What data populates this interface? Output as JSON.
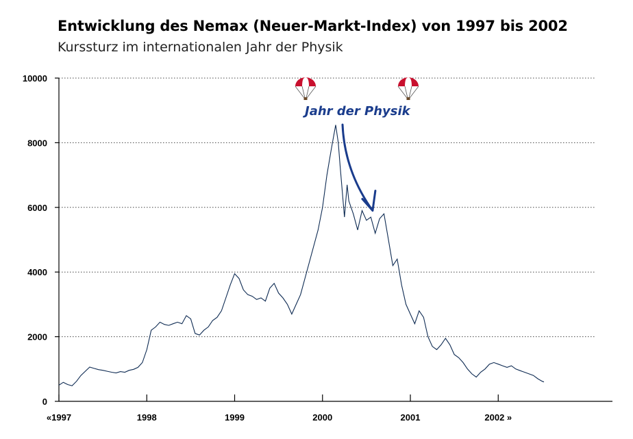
{
  "chart_data": {
    "type": "line",
    "title": "Entwicklung des Nemax (Neuer-Markt-Index) von 1997 bis 2002",
    "subtitle": "Kurssturz im internationalen Jahr der Physik",
    "xlabel": "",
    "ylabel": "",
    "ylim": [
      0,
      10000
    ],
    "yticks": [
      0,
      2000,
      4000,
      6000,
      8000,
      10000
    ],
    "xlim": [
      1997.0,
      2003.3
    ],
    "xticks": [
      {
        "value": 1997.0,
        "label": "«1997"
      },
      {
        "value": 1998.0,
        "label": "1998"
      },
      {
        "value": 1999.0,
        "label": "1999"
      },
      {
        "value": 2000.0,
        "label": "2000"
      },
      {
        "value": 2001.0,
        "label": "2001"
      },
      {
        "value": 2002.0,
        "label": "2002 »"
      }
    ],
    "grid": "horizontal dotted",
    "color": "#0d2a52",
    "annotation": {
      "text": "Jahr der Physik",
      "color": "#1a3c8c",
      "arrow_to": [
        2000.57,
        5900
      ]
    },
    "series": [
      {
        "name": "",
        "x": [
          1997.0,
          1997.05,
          1997.1,
          1997.15,
          1997.2,
          1997.25,
          1997.3,
          1997.35,
          1997.4,
          1997.45,
          1997.5,
          1997.55,
          1997.6,
          1997.65,
          1997.7,
          1997.75,
          1997.8,
          1997.85,
          1997.9,
          1997.95,
          1998.0,
          1998.05,
          1998.1,
          1998.15,
          1998.2,
          1998.25,
          1998.3,
          1998.35,
          1998.4,
          1998.45,
          1998.5,
          1998.55,
          1998.6,
          1998.65,
          1998.7,
          1998.75,
          1998.8,
          1998.85,
          1998.9,
          1998.95,
          1999.0,
          1999.05,
          1999.1,
          1999.15,
          1999.2,
          1999.25,
          1999.3,
          1999.35,
          1999.4,
          1999.45,
          1999.5,
          1999.55,
          1999.6,
          1999.65,
          1999.7,
          1999.75,
          1999.8,
          1999.85,
          1999.9,
          1999.95,
          2000.0,
          2000.05,
          2000.1,
          2000.15,
          2000.18,
          2000.2,
          2000.25,
          2000.28,
          2000.3,
          2000.35,
          2000.4,
          2000.45,
          2000.5,
          2000.55,
          2000.6,
          2000.65,
          2000.7,
          2000.75,
          2000.8,
          2000.85,
          2000.9,
          2000.95,
          2001.0,
          2001.05,
          2001.1,
          2001.15,
          2001.2,
          2001.25,
          2001.3,
          2001.35,
          2001.4,
          2001.45,
          2001.5,
          2001.55,
          2001.6,
          2001.65,
          2001.7,
          2001.75,
          2001.8,
          2001.85,
          2001.9,
          2001.95,
          2002.0,
          2002.05,
          2002.1,
          2002.15,
          2002.2,
          2002.25,
          2002.3,
          2002.35,
          2002.4,
          2002.45,
          2002.5,
          2002.52
        ],
        "values": [
          500,
          590,
          520,
          480,
          620,
          800,
          930,
          1060,
          1020,
          980,
          960,
          930,
          900,
          880,
          920,
          900,
          960,
          990,
          1050,
          1200,
          1600,
          2200,
          2300,
          2450,
          2380,
          2350,
          2400,
          2450,
          2400,
          2650,
          2550,
          2100,
          2050,
          2200,
          2300,
          2500,
          2600,
          2800,
          3200,
          3600,
          3950,
          3800,
          3450,
          3300,
          3250,
          3150,
          3200,
          3100,
          3500,
          3650,
          3350,
          3200,
          3000,
          2700,
          3000,
          3300,
          3800,
          4300,
          4800,
          5300,
          6000,
          7000,
          7800,
          8550,
          8000,
          7300,
          5700,
          6700,
          6200,
          5800,
          5300,
          5900,
          5600,
          5700,
          5200,
          5650,
          5800,
          5000,
          4200,
          4400,
          3600,
          3000,
          2700,
          2400,
          2800,
          2600,
          2000,
          1700,
          1600,
          1750,
          1950,
          1750,
          1450,
          1350,
          1200,
          1000,
          850,
          750,
          900,
          1000,
          1150,
          1200,
          1150,
          1100,
          1050,
          1100,
          1000,
          950,
          900,
          850,
          800,
          700,
          620,
          600
        ]
      }
    ]
  }
}
